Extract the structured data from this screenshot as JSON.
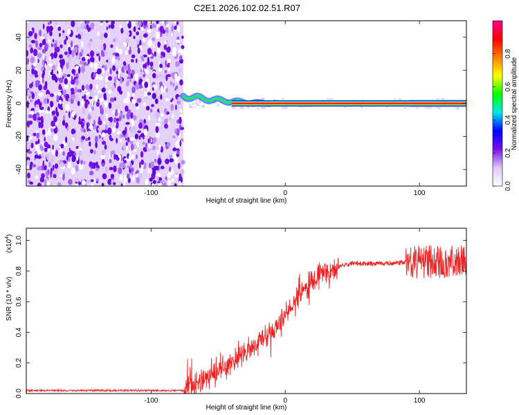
{
  "title": "C2E1.2026.102.02.51.R07",
  "chart_data": [
    {
      "type": "heatmap",
      "name": "spectrogram",
      "xlabel": "Height of straight line (km)",
      "ylabel": "Frequency (Hz)",
      "xlim": [
        -193,
        135
      ],
      "ylim": [
        -50,
        50
      ],
      "xticks": [
        -100,
        0,
        100
      ],
      "xtick_labels": [
        "-100",
        "0",
        "100"
      ],
      "yticks": [
        -40,
        -20,
        0,
        20,
        40
      ],
      "ytick_labels": [
        "-40",
        "-20",
        "0",
        "20",
        "40"
      ],
      "noise_region_x": [
        -193,
        -76
      ],
      "signal_line_start_x": -76,
      "signal_line_freq": 0,
      "dense_end_segment_x": [
        92,
        135
      ],
      "colorbar": {
        "label": "Normalized spectral amplitude",
        "range": [
          0,
          1
        ],
        "ticks": [
          0.0,
          0.2,
          0.4,
          0.6,
          0.8
        ],
        "tick_labels": [
          "0.0",
          "0.2",
          "0.4",
          "0.6",
          "0.8"
        ],
        "colors": [
          "#ffffff",
          "#e0c8f8",
          "#7a10e8",
          "#0000ff",
          "#00e8e8",
          "#00ff00",
          "#ffff00",
          "#ff8000",
          "#ff0000",
          "#ff0090"
        ]
      }
    },
    {
      "type": "line",
      "name": "snr",
      "xlabel": "Height of straight line (km)",
      "ylabel": "SNR (10 * v/v)",
      "scale_label": "(x10",
      "scale_exponent": "4",
      "xlim": [
        -193,
        135
      ],
      "ylim": [
        0,
        1.08
      ],
      "xticks": [
        -100,
        0,
        100
      ],
      "xtick_labels": [
        "-100",
        "0",
        "100"
      ],
      "yticks": [
        0.0,
        0.2,
        0.4,
        0.6,
        0.8,
        1.0
      ],
      "ytick_labels": [
        "0.0",
        "0.2",
        "0.4",
        "0.6",
        "0.8",
        "1.0"
      ],
      "color": "#ee2222",
      "trend": {
        "x": [
          -193,
          -76,
          -70,
          -55,
          -40,
          -30,
          -20,
          -10,
          0,
          10,
          20,
          30,
          40,
          50,
          60,
          70,
          80,
          90,
          100,
          110,
          120,
          135
        ],
        "y": [
          0.02,
          0.02,
          0.05,
          0.12,
          0.2,
          0.26,
          0.33,
          0.4,
          0.52,
          0.64,
          0.74,
          0.8,
          0.83,
          0.85,
          0.85,
          0.85,
          0.85,
          0.86,
          0.86,
          0.86,
          0.86,
          0.86
        ]
      }
    }
  ]
}
